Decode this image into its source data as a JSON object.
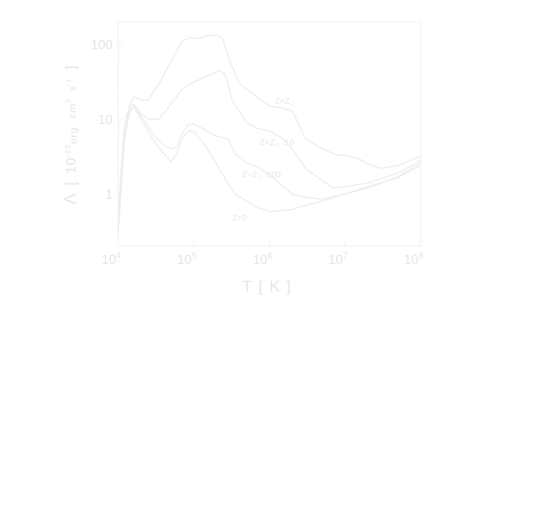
{
  "chart_data": {
    "type": "line",
    "xlabel": "T [ K ]",
    "ylabel_parts": {
      "lambda": "Λ",
      "bracket_open": "[",
      "ten": "10",
      "exp": "-23",
      "erg": "erg",
      "cm": "cm",
      "cm_exp": "3",
      "s": "s",
      "s_exp": "-1",
      "bracket_close": "]"
    },
    "x_scale": "log",
    "y_scale": "log",
    "xlim": [
      10000,
      100000000
    ],
    "ylim": [
      0.2,
      200
    ],
    "x_ticks": [
      {
        "value": 10000,
        "base": "10",
        "exp": "4"
      },
      {
        "value": 100000,
        "base": "10",
        "exp": "5"
      },
      {
        "value": 1000000,
        "base": "10",
        "exp": "6"
      },
      {
        "value": 10000000,
        "base": "10",
        "exp": "7"
      },
      {
        "value": 100000000,
        "base": "10",
        "exp": "8"
      }
    ],
    "y_ticks": [
      {
        "value": 1,
        "label": "1"
      },
      {
        "value": 10,
        "label": "10"
      },
      {
        "value": 100,
        "label": "100"
      }
    ],
    "series_labels": [
      {
        "text": "Z=Z",
        "sub": "☉",
        "suffix": ""
      },
      {
        "text": "Z=Z",
        "sub": "☉",
        "suffix": " /10"
      },
      {
        "text": "Z=Z",
        "sub": "☉",
        "suffix": " /100"
      },
      {
        "text": "Z=0",
        "sub": "",
        "suffix": ""
      }
    ],
    "series": [
      {
        "name": "Z=Z☉",
        "x": [
          10000,
          12000,
          14000,
          16000,
          20000,
          25000,
          35000,
          50000,
          70000,
          90000,
          110000,
          150000,
          200000,
          240000,
          300000,
          400000,
          600000,
          1000000,
          1500000,
          2000000,
          3000000,
          5000000,
          8000000,
          10000000,
          15000000,
          20000000,
          30000000,
          50000000,
          100000000
        ],
        "y": [
          0.3,
          5,
          15,
          20,
          18,
          18,
          30,
          60,
          110,
          125,
          120,
          130,
          135,
          120,
          60,
          30,
          22,
          15,
          14,
          13,
          5.5,
          4,
          3.3,
          3.3,
          3,
          2.5,
          2.2,
          2.4,
          3.2
        ]
      },
      {
        "name": "Z=Z☉/10",
        "x": [
          10000,
          12000,
          14000,
          16000,
          20000,
          25000,
          35000,
          50000,
          70000,
          90000,
          120000,
          170000,
          220000,
          260000,
          320000,
          500000,
          700000,
          1000000,
          1500000,
          2000000,
          3000000,
          5000000,
          7000000,
          10000000,
          20000000,
          50000000,
          100000000
        ],
        "y": [
          0.5,
          8,
          15,
          16,
          12,
          10,
          10,
          16,
          25,
          30,
          34,
          40,
          45,
          40,
          18,
          9,
          7.5,
          7,
          5.5,
          4,
          2.2,
          1.5,
          1.2,
          1.25,
          1.4,
          1.9,
          2.8
        ]
      },
      {
        "name": "Z=Z☉/100",
        "x": [
          10000,
          12000,
          14000,
          16000,
          20000,
          25000,
          30000,
          40000,
          50000,
          60000,
          70000,
          85000,
          100000,
          130000,
          180000,
          220000,
          280000,
          350000,
          500000,
          700000,
          1000000,
          2000000,
          3000000,
          5000000,
          10000000,
          20000000,
          50000000,
          100000000
        ],
        "y": [
          0.5,
          5,
          12,
          15,
          11,
          8,
          6,
          4.5,
          4,
          4.3,
          6.5,
          8.5,
          8.6,
          7.5,
          6.2,
          5.8,
          5.5,
          3.5,
          2.6,
          2.3,
          1.8,
          1,
          0.9,
          0.85,
          1,
          1.2,
          1.7,
          2.6
        ]
      },
      {
        "name": "Z=0",
        "x": [
          10000,
          12000,
          14000,
          16000,
          20000,
          25000,
          30000,
          40000,
          50000,
          60000,
          70000,
          85000,
          100000,
          130000,
          180000,
          250000,
          350000,
          500000,
          700000,
          1000000,
          2000000,
          3000000,
          5000000,
          10000000,
          20000000,
          50000000,
          100000000
        ],
        "y": [
          0.3,
          6,
          13,
          15,
          10,
          7,
          5,
          3.5,
          2.7,
          3.5,
          5.5,
          7,
          6.8,
          5,
          3,
          1.7,
          1,
          0.8,
          0.65,
          0.58,
          0.62,
          0.7,
          0.8,
          1,
          1.25,
          1.65,
          2.4
        ]
      }
    ]
  }
}
